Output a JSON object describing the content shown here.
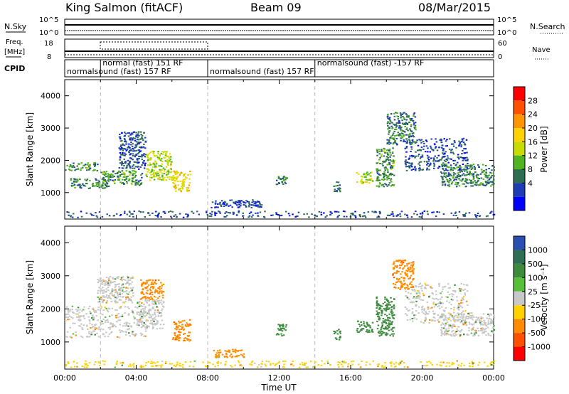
{
  "header": {
    "station": "King Salmon (fitACF)",
    "beam": "Beam 09",
    "date": "08/Mar/2015"
  },
  "top_panels": {
    "nsky_label": "N.Sky",
    "nsky_ticks": [
      "10^5",
      "10^0"
    ],
    "nsearch_label": "N.Search",
    "nsearch_ticks": [
      "10^5",
      "10^0"
    ],
    "freq_label": "Freq.",
    "freq_unit": "[MHz]",
    "freq_ticks": [
      "18",
      "8"
    ],
    "nave_label": "Nave",
    "nave_ticks": [
      "60",
      "0"
    ],
    "cpid_label": "CPID",
    "cpid_segments": [
      {
        "label": "normalsound (fast) 157 RF",
        "start": 0,
        "end": 8
      },
      {
        "label": "normal (fast) 151 RF",
        "start": 2,
        "end": 5.7
      },
      {
        "label": "normalsound (fast) 157 RF",
        "start": 8,
        "end": 14
      },
      {
        "label": "normalsound (fast) -157 RF",
        "start": 14,
        "end": 24
      }
    ]
  },
  "x_axis": {
    "label": "Time UT",
    "ticks": [
      "00:00",
      "04:00",
      "08:00",
      "12:00",
      "16:00",
      "20:00",
      "00:00"
    ]
  },
  "colorbars": {
    "power": {
      "label": "Power [dB]",
      "ticks": [
        "28",
        "24",
        "20",
        "16",
        "12",
        "8",
        "4"
      ],
      "colors": [
        "#ff0000",
        "#ff5000",
        "#ff9600",
        "#ffd200",
        "#c8dc00",
        "#50b41e",
        "#2d6e50",
        "#1e3cb4",
        "#0000ff"
      ]
    },
    "velocity": {
      "label": "Velocity [m s⁻¹]",
      "ticks": [
        "1000",
        "500",
        "100",
        "25",
        "-25",
        "-100",
        "-500",
        "-1000"
      ],
      "colors": [
        "#2b4fb0",
        "#2d6e55",
        "#3c8c3c",
        "#56c038",
        "#c8c8c8",
        "#ffd200",
        "#ff8c00",
        "#ff5000",
        "#ff0000"
      ]
    }
  },
  "chart_data": [
    {
      "type": "heatmap",
      "title": "",
      "ylabel": "Slant Range [km]",
      "xlabel": "",
      "x_unit": "hours UT",
      "xlim": [
        0,
        24
      ],
      "ylim": [
        180,
        4500
      ],
      "yticks": [
        1000,
        2000,
        3000,
        4000
      ],
      "colorbar": "power",
      "regions": [
        {
          "x": [
            0.0,
            1.8
          ],
          "y": [
            1700,
            1950
          ],
          "value": 10
        },
        {
          "x": [
            0.3,
            2.5
          ],
          "y": [
            1150,
            1450
          ],
          "value": 9
        },
        {
          "x": [
            2.0,
            4.3
          ],
          "y": [
            1250,
            1700
          ],
          "value": 10
        },
        {
          "x": [
            3.0,
            4.5
          ],
          "y": [
            1750,
            2900
          ],
          "value": 6
        },
        {
          "x": [
            4.5,
            6.0
          ],
          "y": [
            1400,
            2300
          ],
          "value": 14
        },
        {
          "x": [
            6.0,
            7.0
          ],
          "y": [
            1050,
            1700
          ],
          "value": 18
        },
        {
          "x": [
            11.8,
            12.4
          ],
          "y": [
            1200,
            1550
          ],
          "value": 9
        },
        {
          "x": [
            15.0,
            15.4
          ],
          "y": [
            1050,
            1400
          ],
          "value": 8
        },
        {
          "x": [
            16.3,
            17.2
          ],
          "y": [
            1300,
            1650
          ],
          "value": 14
        },
        {
          "x": [
            17.4,
            18.4
          ],
          "y": [
            1200,
            2400
          ],
          "value": 10
        },
        {
          "x": [
            18.0,
            19.6
          ],
          "y": [
            2500,
            3500
          ],
          "value": 8
        },
        {
          "x": [
            19.0,
            22.5
          ],
          "y": [
            1700,
            2700
          ],
          "value": 6
        },
        {
          "x": [
            21.0,
            24.0
          ],
          "y": [
            1200,
            1900
          ],
          "value": 9
        },
        {
          "x": [
            8.0,
            11.0
          ],
          "y": [
            550,
            800
          ],
          "value": 5
        },
        {
          "x": [
            0.0,
            24.0
          ],
          "y": [
            250,
            450
          ],
          "value": 6
        }
      ]
    },
    {
      "type": "heatmap",
      "title": "",
      "ylabel": "Slant Range [km]",
      "xlabel": "Time UT",
      "x_unit": "hours UT",
      "xlim": [
        0,
        24
      ],
      "ylim": [
        180,
        4500
      ],
      "yticks": [
        1000,
        2000,
        3000,
        4000
      ],
      "colorbar": "velocity",
      "regions": [
        {
          "x": [
            0.0,
            4.5
          ],
          "y": [
            1150,
            2100
          ],
          "value": 0
        },
        {
          "x": [
            4.0,
            5.5
          ],
          "y": [
            1400,
            2300
          ],
          "value": 0
        },
        {
          "x": [
            1.8,
            3.8
          ],
          "y": [
            2200,
            3000
          ],
          "value": 0
        },
        {
          "x": [
            4.2,
            5.5
          ],
          "y": [
            2300,
            2900
          ],
          "value": -300
        },
        {
          "x": [
            6.0,
            7.0
          ],
          "y": [
            1050,
            1700
          ],
          "value": -400
        },
        {
          "x": [
            8.3,
            10.0
          ],
          "y": [
            550,
            800
          ],
          "value": -200
        },
        {
          "x": [
            11.8,
            12.4
          ],
          "y": [
            1200,
            1550
          ],
          "value": 300
        },
        {
          "x": [
            15.0,
            15.4
          ],
          "y": [
            1050,
            1400
          ],
          "value": 300
        },
        {
          "x": [
            16.3,
            17.2
          ],
          "y": [
            1300,
            1650
          ],
          "value": 300
        },
        {
          "x": [
            17.4,
            18.4
          ],
          "y": [
            1200,
            2400
          ],
          "value": 300
        },
        {
          "x": [
            18.3,
            19.5
          ],
          "y": [
            2600,
            3500
          ],
          "value": -400
        },
        {
          "x": [
            19.0,
            22.5
          ],
          "y": [
            1600,
            2800
          ],
          "value": 0
        },
        {
          "x": [
            21.0,
            24.0
          ],
          "y": [
            1200,
            1900
          ],
          "value": 0
        },
        {
          "x": [
            0.0,
            24.0
          ],
          "y": [
            250,
            450
          ],
          "value": -60
        }
      ]
    }
  ]
}
